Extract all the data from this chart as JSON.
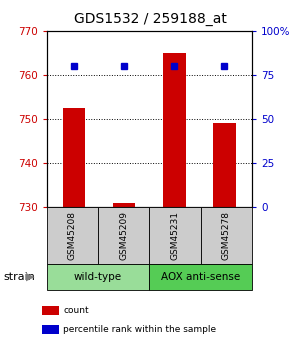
{
  "title": "GDS1532 / 259188_at",
  "samples": [
    "GSM45208",
    "GSM45209",
    "GSM45231",
    "GSM45278"
  ],
  "count_values": [
    752.5,
    730.8,
    765.0,
    749.0
  ],
  "percentile_values": [
    80,
    80,
    80,
    80
  ],
  "ylim_left": [
    730,
    770
  ],
  "ylim_right": [
    0,
    100
  ],
  "yticks_left": [
    730,
    740,
    750,
    760,
    770
  ],
  "yticks_right": [
    0,
    25,
    50,
    75,
    100
  ],
  "ytick_labels_right": [
    "0",
    "25",
    "50",
    "75",
    "100%"
  ],
  "bar_color": "#cc0000",
  "dot_color": "#0000cc",
  "groups": [
    {
      "label": "wild-type",
      "samples": [
        0,
        1
      ],
      "color": "#99dd99"
    },
    {
      "label": "AOX anti-sense",
      "samples": [
        2,
        3
      ],
      "color": "#55cc55"
    }
  ],
  "group_label": "strain",
  "legend_items": [
    {
      "color": "#cc0000",
      "label": "count"
    },
    {
      "color": "#0000cc",
      "label": "percentile rank within the sample"
    }
  ],
  "sample_box_color": "#cccccc",
  "grid_color": "#000000",
  "title_fontsize": 10,
  "tick_fontsize": 7.5,
  "bar_width": 0.45
}
